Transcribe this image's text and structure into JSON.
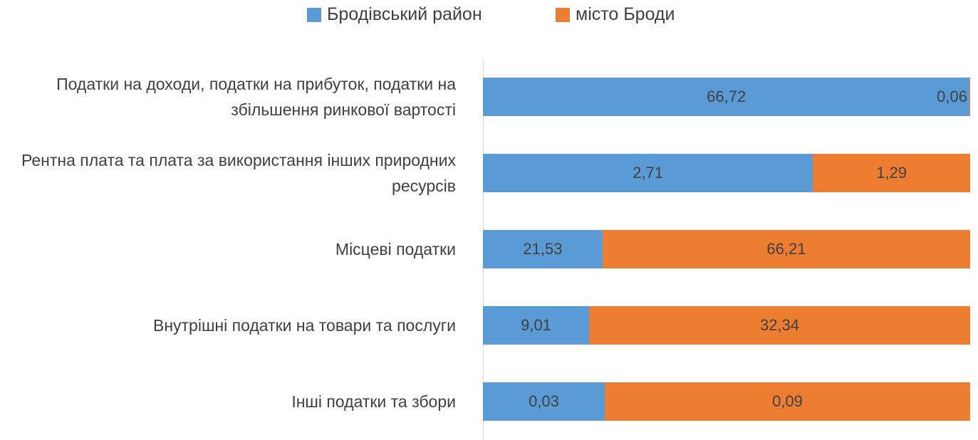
{
  "chart_data": {
    "type": "bar",
    "orientation": "horizontal",
    "stacking": "percent",
    "categories": [
      "Податки на доходи, податки на прибуток, податки на збільшення ринкової вартості",
      "Рентна плата та плата за використання інших природних ресурсів",
      "Місцеві податки",
      "Внутрішні податки на товари та послуги",
      "Інші податки та збори"
    ],
    "series": [
      {
        "name": "Бродівський район",
        "color": "#5b9bd5",
        "values": [
          66.72,
          2.71,
          21.53,
          9.01,
          0.03
        ],
        "value_labels": [
          "66,72",
          "2,71",
          "21,53",
          "9,01",
          "0,03"
        ]
      },
      {
        "name": "місто Броди",
        "color": "#ed7d31",
        "values": [
          0.06,
          1.29,
          66.21,
          32.34,
          0.09
        ],
        "value_labels": [
          "0,06",
          "1,29",
          "66,21",
          "32,34",
          "0,09"
        ]
      }
    ],
    "legend": "top"
  }
}
